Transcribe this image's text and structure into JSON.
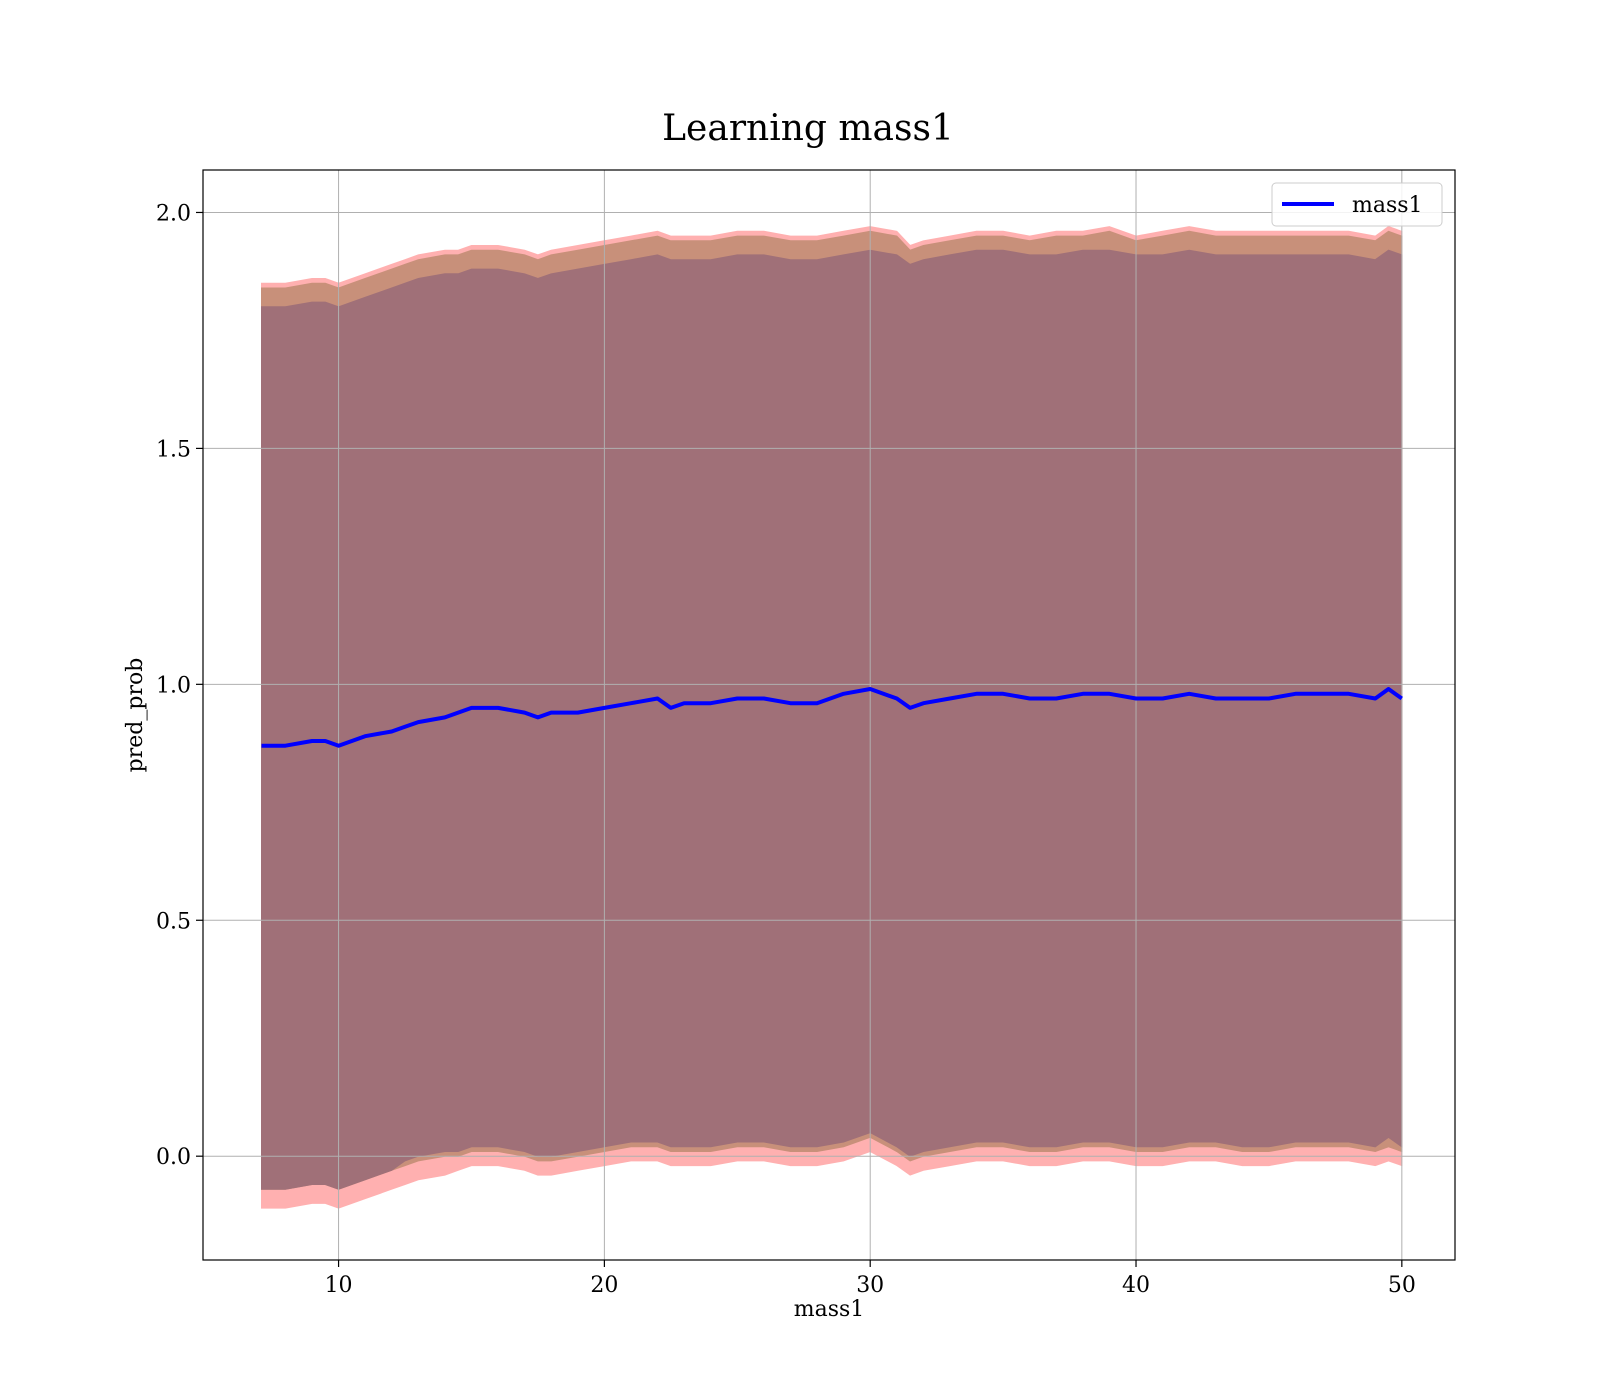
{
  "chart_data": {
    "type": "line",
    "title": "Learning mass1",
    "xlabel": "mass1",
    "ylabel": "pred_prob",
    "xlim": [
      4.9,
      52.0
    ],
    "ylim": [
      -0.22,
      2.09
    ],
    "xticks": [
      10,
      20,
      30,
      40,
      50
    ],
    "xtick_labels": [
      "10",
      "20",
      "30",
      "40",
      "50"
    ],
    "yticks": [
      0.0,
      0.5,
      1.0,
      1.5,
      2.0
    ],
    "ytick_labels": [
      "0.0",
      "0.5",
      "1.0",
      "1.5",
      "2.0"
    ],
    "grid": true,
    "legend": {
      "position": "top-right",
      "entries": [
        "mass1"
      ]
    },
    "colors": {
      "line": "#0000ff",
      "band_outer": "#ffb0b0",
      "band_mid": "#c8907a",
      "band_inner": "#a07078",
      "grid": "#b0b0b0"
    },
    "series": [
      {
        "name": "mass1",
        "x": [
          7.1,
          8.0,
          9.0,
          9.5,
          10.0,
          11.0,
          12.0,
          12.5,
          13.0,
          14.0,
          14.5,
          15.0,
          16.0,
          17.0,
          17.5,
          18.0,
          19.0,
          20.0,
          21.0,
          22.0,
          22.5,
          23.0,
          24.0,
          25.0,
          26.0,
          27.0,
          28.0,
          29.0,
          30.0,
          31.0,
          31.5,
          32.0,
          33.0,
          34.0,
          35.0,
          36.0,
          37.0,
          38.0,
          39.0,
          40.0,
          41.0,
          42.0,
          43.0,
          44.0,
          45.0,
          46.0,
          47.0,
          48.0,
          49.0,
          49.5,
          50.0
        ],
        "y": [
          0.87,
          0.87,
          0.88,
          0.88,
          0.87,
          0.89,
          0.9,
          0.91,
          0.92,
          0.93,
          0.94,
          0.95,
          0.95,
          0.94,
          0.93,
          0.94,
          0.94,
          0.95,
          0.96,
          0.97,
          0.95,
          0.96,
          0.96,
          0.97,
          0.97,
          0.96,
          0.96,
          0.98,
          0.99,
          0.97,
          0.95,
          0.96,
          0.97,
          0.98,
          0.98,
          0.97,
          0.97,
          0.98,
          0.98,
          0.97,
          0.97,
          0.98,
          0.97,
          0.97,
          0.97,
          0.98,
          0.98,
          0.98,
          0.97,
          0.99,
          0.97
        ],
        "band_outer_upper": [
          1.85,
          1.85,
          1.86,
          1.86,
          1.85,
          1.87,
          1.89,
          1.9,
          1.91,
          1.92,
          1.92,
          1.93,
          1.93,
          1.92,
          1.91,
          1.92,
          1.93,
          1.94,
          1.95,
          1.96,
          1.95,
          1.95,
          1.95,
          1.96,
          1.96,
          1.95,
          1.95,
          1.96,
          1.97,
          1.96,
          1.93,
          1.94,
          1.95,
          1.96,
          1.96,
          1.95,
          1.96,
          1.96,
          1.97,
          1.95,
          1.96,
          1.97,
          1.96,
          1.96,
          1.96,
          1.96,
          1.96,
          1.96,
          1.95,
          1.97,
          1.96
        ],
        "band_outer_lower": [
          -0.11,
          -0.11,
          -0.1,
          -0.1,
          -0.11,
          -0.09,
          -0.07,
          -0.06,
          -0.05,
          -0.04,
          -0.03,
          -0.02,
          -0.02,
          -0.03,
          -0.04,
          -0.04,
          -0.03,
          -0.02,
          -0.01,
          -0.01,
          -0.02,
          -0.02,
          -0.02,
          -0.01,
          -0.01,
          -0.02,
          -0.02,
          -0.01,
          0.01,
          -0.02,
          -0.04,
          -0.03,
          -0.02,
          -0.01,
          -0.01,
          -0.02,
          -0.02,
          -0.01,
          -0.01,
          -0.02,
          -0.02,
          -0.01,
          -0.01,
          -0.02,
          -0.02,
          -0.01,
          -0.01,
          -0.01,
          -0.02,
          -0.01,
          -0.02
        ],
        "band_mid_upper": [
          1.84,
          1.84,
          1.85,
          1.85,
          1.84,
          1.86,
          1.88,
          1.89,
          1.9,
          1.91,
          1.91,
          1.92,
          1.92,
          1.91,
          1.9,
          1.91,
          1.92,
          1.93,
          1.94,
          1.95,
          1.94,
          1.94,
          1.94,
          1.95,
          1.95,
          1.94,
          1.94,
          1.95,
          1.96,
          1.95,
          1.92,
          1.93,
          1.94,
          1.95,
          1.95,
          1.94,
          1.95,
          1.95,
          1.96,
          1.94,
          1.95,
          1.96,
          1.95,
          1.95,
          1.95,
          1.95,
          1.95,
          1.95,
          1.94,
          1.96,
          1.95
        ],
        "band_mid_lower": [
          -0.07,
          -0.07,
          -0.06,
          -0.06,
          -0.07,
          -0.05,
          -0.03,
          -0.02,
          -0.01,
          0.0,
          0.0,
          0.01,
          0.01,
          0.0,
          -0.01,
          -0.01,
          0.0,
          0.01,
          0.02,
          0.02,
          0.01,
          0.01,
          0.01,
          0.02,
          0.02,
          0.01,
          0.01,
          0.02,
          0.04,
          0.01,
          -0.01,
          0.0,
          0.01,
          0.02,
          0.02,
          0.01,
          0.01,
          0.02,
          0.02,
          0.01,
          0.01,
          0.02,
          0.02,
          0.01,
          0.01,
          0.02,
          0.02,
          0.02,
          0.01,
          0.02,
          0.01
        ],
        "band_inner_upper": [
          1.8,
          1.8,
          1.81,
          1.81,
          1.8,
          1.82,
          1.84,
          1.85,
          1.86,
          1.87,
          1.87,
          1.88,
          1.88,
          1.87,
          1.86,
          1.87,
          1.88,
          1.89,
          1.9,
          1.91,
          1.9,
          1.9,
          1.9,
          1.91,
          1.91,
          1.9,
          1.9,
          1.91,
          1.92,
          1.91,
          1.89,
          1.9,
          1.91,
          1.92,
          1.92,
          1.91,
          1.91,
          1.92,
          1.92,
          1.91,
          1.91,
          1.92,
          1.91,
          1.91,
          1.91,
          1.91,
          1.91,
          1.91,
          1.9,
          1.92,
          1.91
        ],
        "band_inner_lower": [
          -0.07,
          -0.07,
          -0.06,
          -0.06,
          -0.07,
          -0.05,
          -0.03,
          -0.01,
          0.0,
          0.01,
          0.01,
          0.02,
          0.02,
          0.01,
          0.0,
          0.0,
          0.01,
          0.02,
          0.03,
          0.03,
          0.02,
          0.02,
          0.02,
          0.03,
          0.03,
          0.02,
          0.02,
          0.03,
          0.05,
          0.02,
          0.0,
          0.01,
          0.02,
          0.03,
          0.03,
          0.02,
          0.02,
          0.03,
          0.03,
          0.02,
          0.02,
          0.03,
          0.03,
          0.02,
          0.02,
          0.03,
          0.03,
          0.03,
          0.02,
          0.04,
          0.02
        ]
      }
    ]
  }
}
